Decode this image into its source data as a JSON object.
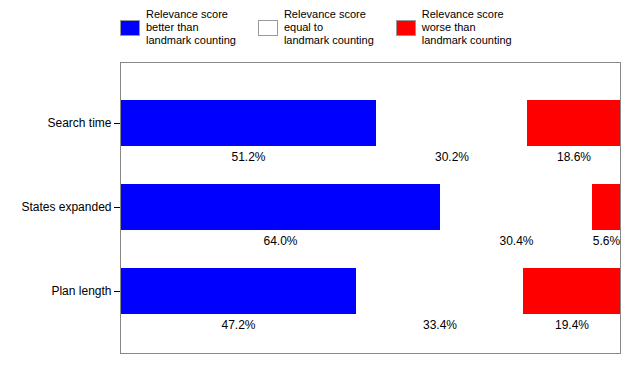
{
  "chart_data": {
    "type": "bar",
    "orientation": "horizontal",
    "stacked": true,
    "categories": [
      "Search time",
      "States expanded",
      "Plan length"
    ],
    "series": [
      {
        "name": "Relevance score\nbetter than\nlandmark counting",
        "color": "#0000ff",
        "values": [
          51.2,
          64.0,
          47.2
        ],
        "value_labels": [
          "51.2%",
          "64.0%",
          "47.2%"
        ]
      },
      {
        "name": "Relevance score\nequal to\nlandmark counting",
        "color": "#ffffff",
        "values": [
          30.2,
          30.4,
          33.4
        ],
        "value_labels": [
          "30.2%",
          "30.4%",
          "33.4%"
        ]
      },
      {
        "name": "Relevance score\nworse than\nlandmark counting",
        "color": "#ff0000",
        "values": [
          18.6,
          5.6,
          19.4
        ],
        "value_labels": [
          "18.6%",
          "5.6%",
          "19.4%"
        ]
      }
    ],
    "xlim": [
      0,
      100
    ],
    "tick_labels": "y",
    "data_labels": true,
    "legend": "top"
  }
}
